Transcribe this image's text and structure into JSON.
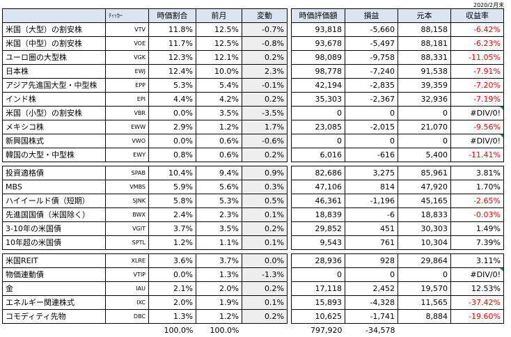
{
  "period_label": "2020/2月末",
  "left_headers": [
    "",
    "ﾃｨｯｶｰ",
    "時価割合",
    "前月",
    "変動"
  ],
  "right_headers": [
    "時価評価額",
    "損益",
    "元本",
    "収益率"
  ],
  "groups": [
    [
      {
        "name": "米国（大型）の割安株",
        "ticker": "VTV",
        "ratio": "11.8%",
        "prev": "12.5%",
        "change": "-0.7%",
        "value": "93,818",
        "pl": "-5,660",
        "principal": "88,158",
        "rate": "-6.42%",
        "neg": true
      },
      {
        "name": "米国（中型）の割安株",
        "ticker": "VOE",
        "ratio": "11.7%",
        "prev": "12.5%",
        "change": "-0.8%",
        "value": "93,678",
        "pl": "-5,497",
        "principal": "88,181",
        "rate": "-6.23%",
        "neg": true
      },
      {
        "name": "ユーロ圏の大型株",
        "ticker": "VGK",
        "ratio": "12.3%",
        "prev": "12.1%",
        "change": "0.2%",
        "value": "98,089",
        "pl": "-9,758",
        "principal": "88,331",
        "rate": "-11.05%",
        "neg": true
      },
      {
        "name": "日本株",
        "ticker": "EWJ",
        "ratio": "12.4%",
        "prev": "10.0%",
        "change": "2.3%",
        "value": "98,778",
        "pl": "-7,240",
        "principal": "91,538",
        "rate": "-7.91%",
        "neg": true
      },
      {
        "name": "アジア先進国大型・中型株",
        "ticker": "EPP",
        "ratio": "5.3%",
        "prev": "5.4%",
        "change": "-0.1%",
        "value": "42,194",
        "pl": "-2,835",
        "principal": "39,359",
        "rate": "-7.20%",
        "neg": true
      },
      {
        "name": "インド株",
        "ticker": "EPI",
        "ratio": "4.4%",
        "prev": "4.2%",
        "change": "0.2%",
        "value": "35,303",
        "pl": "-2,367",
        "principal": "32,936",
        "rate": "-7.19%",
        "neg": true
      },
      {
        "name": "米国（小型）の割安株",
        "ticker": "VBR",
        "ratio": "0.0%",
        "prev": "3.5%",
        "change": "-3.5%",
        "value": "0",
        "pl": "0",
        "principal": "0",
        "rate": "#DIV/0!",
        "neg": false,
        "err": true
      },
      {
        "name": "メキシコ株",
        "ticker": "EWW",
        "ratio": "2.9%",
        "prev": "1.2%",
        "change": "1.7%",
        "value": "23,085",
        "pl": "-2,015",
        "principal": "21,070",
        "rate": "-9.56%",
        "neg": true
      },
      {
        "name": "新興国株式",
        "ticker": "VWO",
        "ratio": "0.0%",
        "prev": "0.6%",
        "change": "-0.6%",
        "value": "0",
        "pl": "0",
        "principal": "0",
        "rate": "#DIV/0!",
        "neg": false,
        "err": true
      },
      {
        "name": "韓国の大型・中型株",
        "ticker": "EWY",
        "ratio": "0.8%",
        "prev": "0.6%",
        "change": "0.2%",
        "value": "6,016",
        "pl": "-616",
        "principal": "5,400",
        "rate": "-11.41%",
        "neg": true
      }
    ],
    [
      {
        "name": "投資適格債",
        "ticker": "SPAB",
        "ratio": "10.4%",
        "prev": "9.4%",
        "change": "0.9%",
        "value": "82,686",
        "pl": "3,275",
        "principal": "85,961",
        "rate": "3.81%",
        "neg": false
      },
      {
        "name": "MBS",
        "ticker": "VMBS",
        "ratio": "5.9%",
        "prev": "5.6%",
        "change": "0.3%",
        "value": "47,106",
        "pl": "814",
        "principal": "47,920",
        "rate": "1.70%",
        "neg": false
      },
      {
        "name": "ハイイールド債（短期）",
        "ticker": "SJNK",
        "ratio": "5.8%",
        "prev": "5.3%",
        "change": "0.5%",
        "value": "46,361",
        "pl": "-1,196",
        "principal": "45,165",
        "rate": "-2.65%",
        "neg": true
      },
      {
        "name": "先進国国債（米国除く）",
        "ticker": "BWX",
        "ratio": "2.4%",
        "prev": "2.3%",
        "change": "0.1%",
        "value": "18,839",
        "pl": "-6",
        "principal": "18,833",
        "rate": "-0.03%",
        "neg": true
      },
      {
        "name": "3-10年の米国債",
        "ticker": "VGIT",
        "ratio": "3.7%",
        "prev": "3.5%",
        "change": "0.2%",
        "value": "29,852",
        "pl": "451",
        "principal": "30,303",
        "rate": "1.49%",
        "neg": false
      },
      {
        "name": "10年超の米国債",
        "ticker": "SPTL",
        "ratio": "1.2%",
        "prev": "1.1%",
        "change": "0.1%",
        "value": "9,543",
        "pl": "761",
        "principal": "10,304",
        "rate": "7.39%",
        "neg": false
      }
    ],
    [
      {
        "name": "米国REIT",
        "ticker": "XLRE",
        "ratio": "3.6%",
        "prev": "3.7%",
        "change": "0.0%",
        "value": "28,936",
        "pl": "928",
        "principal": "29,864",
        "rate": "3.11%",
        "neg": false
      },
      {
        "name": "物価連動債",
        "ticker": "VTIP",
        "ratio": "0.0%",
        "prev": "1.3%",
        "change": "-1.3%",
        "value": "0",
        "pl": "0",
        "principal": "0",
        "rate": "#DIV/0!",
        "neg": false,
        "err": true
      },
      {
        "name": "金",
        "ticker": "IAU",
        "ratio": "2.1%",
        "prev": "2.0%",
        "change": "0.2%",
        "value": "17,118",
        "pl": "2,452",
        "principal": "19,570",
        "rate": "12.53%",
        "neg": false
      },
      {
        "name": "エネルギー関連株式",
        "ticker": "IXC",
        "ratio": "2.0%",
        "prev": "1.9%",
        "change": "0.1%",
        "value": "15,893",
        "pl": "-4,328",
        "principal": "11,565",
        "rate": "-37.42%",
        "neg": true
      },
      {
        "name": "コモディティ先物",
        "ticker": "DBC",
        "ratio": "1.3%",
        "prev": "1.2%",
        "change": "0.2%",
        "value": "10,625",
        "pl": "-1,741",
        "principal": "8,884",
        "rate": "-19.60%",
        "neg": true
      }
    ]
  ],
  "totals": {
    "ratio": "100.0%",
    "prev": "100.0%",
    "value": "797,920",
    "pl": "-34,578"
  }
}
